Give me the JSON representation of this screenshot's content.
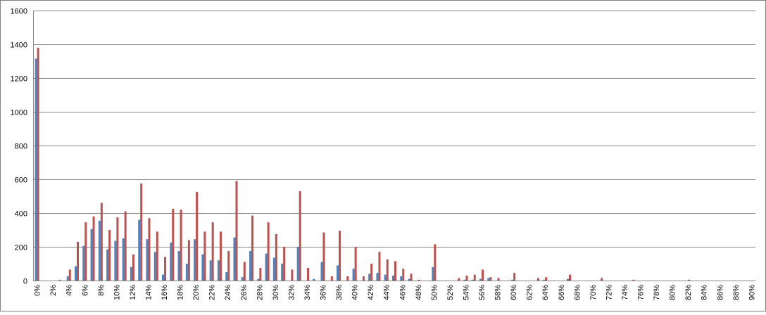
{
  "chart_data": {
    "type": "bar",
    "title": "",
    "xlabel": "",
    "ylabel": "",
    "ylim": [
      0,
      1600
    ],
    "yticks": [
      0,
      200,
      400,
      600,
      800,
      1000,
      1200,
      1400,
      1600
    ],
    "grid": true,
    "legend": "none",
    "tick_label_every": 2,
    "categories": [
      "0%",
      "1%",
      "2%",
      "3%",
      "4%",
      "5%",
      "6%",
      "7%",
      "8%",
      "9%",
      "10%",
      "11%",
      "12%",
      "13%",
      "14%",
      "15%",
      "16%",
      "17%",
      "18%",
      "19%",
      "20%",
      "21%",
      "22%",
      "23%",
      "24%",
      "25%",
      "26%",
      "27%",
      "28%",
      "29%",
      "30%",
      "31%",
      "32%",
      "33%",
      "34%",
      "35%",
      "36%",
      "37%",
      "38%",
      "39%",
      "40%",
      "41%",
      "42%",
      "43%",
      "44%",
      "45%",
      "46%",
      "47%",
      "48%",
      "49%",
      "50%",
      "51%",
      "52%",
      "53%",
      "54%",
      "55%",
      "56%",
      "57%",
      "58%",
      "59%",
      "60%",
      "61%",
      "62%",
      "63%",
      "64%",
      "65%",
      "66%",
      "67%",
      "68%",
      "69%",
      "70%",
      "71%",
      "72%",
      "73%",
      "74%",
      "75%",
      "76%",
      "77%",
      "78%",
      "79%",
      "80%",
      "81%",
      "82%",
      "83%",
      "84%",
      "85%",
      "86%",
      "87%",
      "88%",
      "89%",
      "90%"
    ],
    "series": [
      {
        "color": "#4F81BD",
        "values": [
          1315,
          0,
          0,
          5,
          25,
          85,
          205,
          305,
          355,
          185,
          235,
          250,
          80,
          360,
          245,
          170,
          35,
          225,
          175,
          100,
          245,
          155,
          120,
          120,
          50,
          255,
          20,
          175,
          10,
          160,
          135,
          100,
          0,
          200,
          0,
          10,
          110,
          0,
          90,
          0,
          70,
          0,
          40,
          45,
          35,
          30,
          25,
          10,
          0,
          0,
          80,
          0,
          0,
          0,
          5,
          5,
          10,
          15,
          0,
          0,
          5,
          0,
          0,
          0,
          5,
          0,
          0,
          10,
          0,
          0,
          0,
          0,
          0,
          0,
          0,
          0,
          0,
          0,
          0,
          0,
          0,
          0,
          0,
          0,
          0,
          0,
          0,
          0,
          0,
          0,
          0
        ]
      },
      {
        "color": "#C0504D",
        "values": [
          1380,
          0,
          0,
          0,
          65,
          230,
          345,
          380,
          460,
          300,
          375,
          410,
          155,
          575,
          370,
          290,
          140,
          425,
          420,
          240,
          525,
          290,
          345,
          290,
          175,
          590,
          110,
          385,
          75,
          345,
          275,
          200,
          65,
          530,
          75,
          0,
          285,
          25,
          295,
          25,
          200,
          25,
          100,
          170,
          125,
          115,
          70,
          40,
          5,
          0,
          215,
          0,
          0,
          15,
          30,
          35,
          65,
          20,
          15,
          0,
          45,
          0,
          0,
          15,
          20,
          0,
          0,
          35,
          0,
          0,
          0,
          15,
          0,
          0,
          0,
          5,
          0,
          0,
          0,
          0,
          0,
          0,
          5,
          0,
          0,
          0,
          0,
          0,
          0,
          0,
          0
        ]
      }
    ]
  }
}
